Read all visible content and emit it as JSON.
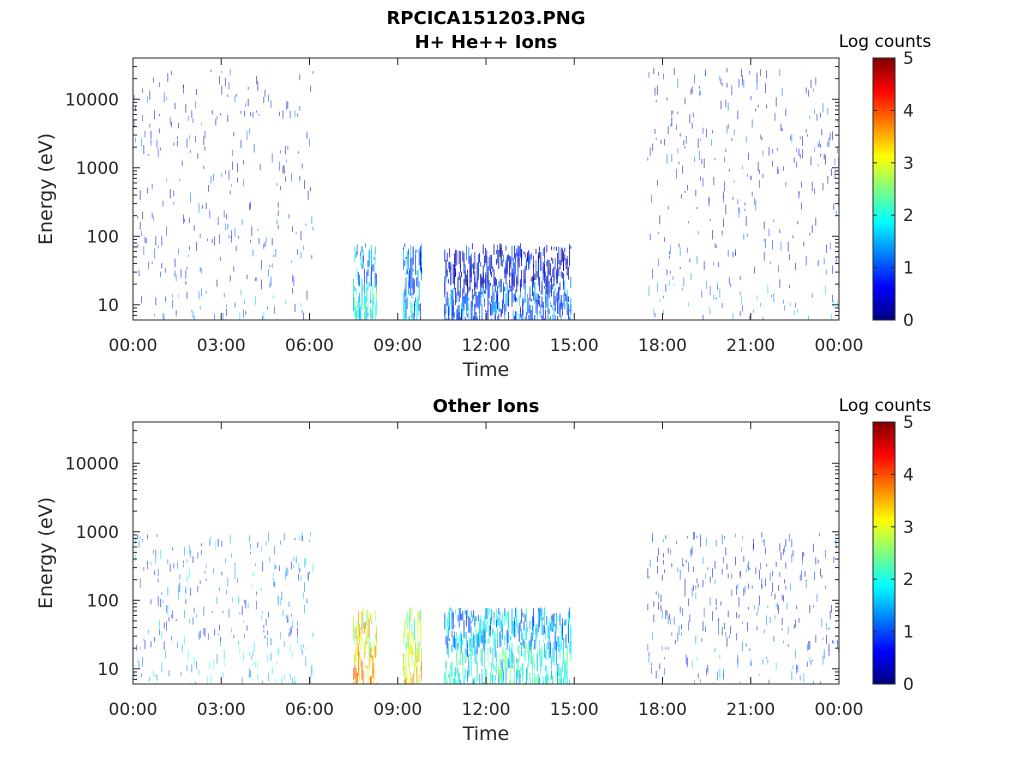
{
  "figure": {
    "filename_title": "RPCICA151203.PNG"
  },
  "colorbar": {
    "label": "Log counts",
    "ticks": [
      "0",
      "1",
      "2",
      "3",
      "4",
      "5"
    ],
    "colormap": [
      "#00007f",
      "#0000ff",
      "#007fff",
      "#00ffff",
      "#7fff7f",
      "#ffff00",
      "#ff7f00",
      "#ff0000",
      "#7f0000"
    ]
  },
  "chart_data": [
    {
      "type": "heatmap",
      "title": "H+ He++ Ions",
      "xlabel": "Time",
      "ylabel": "Energy (eV)",
      "x_ticks": [
        "00:00",
        "03:00",
        "06:00",
        "09:00",
        "12:00",
        "15:00",
        "18:00",
        "21:00",
        "00:00"
      ],
      "x_range_hours": [
        0,
        24
      ],
      "y_ticks": [
        "10",
        "100",
        "1000",
        "10000"
      ],
      "y_scale": "log",
      "y_range": [
        6,
        40000
      ],
      "z_label": "Log counts",
      "z_range": [
        0,
        5
      ],
      "segments": [
        {
          "start_hour": 0.0,
          "end_hour": 6.15,
          "max_energy_ev": 30000,
          "level": 0.6
        },
        {
          "start_hour": 7.5,
          "end_hour": 8.3,
          "max_energy_ev": 80,
          "level": 1.4
        },
        {
          "start_hour": 9.2,
          "end_hour": 9.85,
          "max_energy_ev": 80,
          "level": 1.1
        },
        {
          "start_hour": 10.6,
          "end_hour": 14.9,
          "max_energy_ev": 80,
          "level": 0.5
        },
        {
          "start_hour": 17.5,
          "end_hour": 24.0,
          "max_energy_ev": 30000,
          "level": 0.6
        }
      ]
    },
    {
      "type": "heatmap",
      "title": "Other Ions",
      "xlabel": "Time",
      "ylabel": "Energy (eV)",
      "x_ticks": [
        "00:00",
        "03:00",
        "06:00",
        "09:00",
        "12:00",
        "15:00",
        "18:00",
        "21:00",
        "00:00"
      ],
      "x_range_hours": [
        0,
        24
      ],
      "y_ticks": [
        "10",
        "100",
        "1000",
        "10000"
      ],
      "y_scale": "log",
      "y_range": [
        6,
        40000
      ],
      "z_label": "Log counts",
      "z_range": [
        0,
        5
      ],
      "segments": [
        {
          "start_hour": 0.0,
          "end_hour": 6.15,
          "max_energy_ev": 1000,
          "level": 1.2
        },
        {
          "start_hour": 7.5,
          "end_hour": 8.3,
          "max_energy_ev": 80,
          "level": 3.0
        },
        {
          "start_hour": 9.2,
          "end_hour": 9.85,
          "max_energy_ev": 80,
          "level": 2.6
        },
        {
          "start_hour": 10.6,
          "end_hour": 14.9,
          "max_energy_ev": 80,
          "level": 1.5
        },
        {
          "start_hour": 17.5,
          "end_hour": 24.0,
          "max_energy_ev": 1000,
          "level": 0.7
        }
      ]
    }
  ]
}
